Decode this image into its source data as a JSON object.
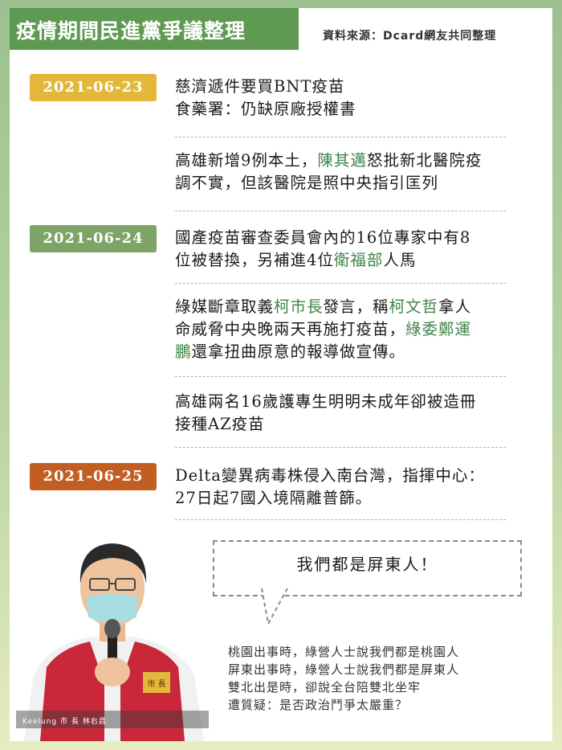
{
  "header": {
    "title": "疫情期間民進黨爭議整理",
    "source": "資料來源：Dcard網友共同整理"
  },
  "dates": {
    "d1": {
      "label": "2021-06-23",
      "color": "#e3b73a"
    },
    "d2": {
      "label": "2021-06-24",
      "color": "#7ea367"
    },
    "d3": {
      "label": "2021-06-25",
      "color": "#c25e22"
    }
  },
  "items": {
    "i1": {
      "line1": "慈濟遞件要買BNT疫苗",
      "line2": "食藥署：仍缺原廠授權書"
    },
    "i2": {
      "l1a": "高雄新增9例本土，",
      "l1b": "陳其邁",
      "l1c": "怒批新北醫院疫",
      "line2": "調不實，但該醫院是照中央指引匡列"
    },
    "i3": {
      "line1": "國產疫苗審查委員會內的16位專家中有8",
      "l2a": "位被替換，另補進4位",
      "l2b": "衛福部",
      "l2c": "人馬"
    },
    "i4": {
      "l1a": "綠媒斷章取義",
      "l1b": "柯市長",
      "l1c": "發言，稱",
      "l1d": "柯文哲",
      "l1e": "拿人",
      "l2a": "命威脅中央晚兩天再施打疫苗，",
      "l2b": "綠委鄭運",
      "l3a": "鵬",
      "l3b": "還拿扭曲原意的報導做宣傳。"
    },
    "i5": {
      "line1": "高雄兩名16歲護專生明明未成年卻被造冊",
      "line2": "接種AZ疫苗"
    },
    "i6": {
      "line1": "Delta變異病毒株侵入南台灣，指揮中心：",
      "line2": "27日起7國入境隔離普篩。"
    }
  },
  "bubble": {
    "text": "我們都是屏東人！"
  },
  "quote": {
    "line1": "桃園出事時，綠營人士說我們都是桃園人",
    "line2": "屏東出事時，綠營人士說我們都是屏東人",
    "line3": "雙北出是時，卻說全台陪雙北坐牢",
    "line4": "遭質疑：是否政治鬥爭太嚴重？"
  },
  "photo": {
    "caption": "Keelung 市 長 林右昌",
    "vest_badge": "市 長"
  },
  "colors": {
    "highlight": "#3f8548",
    "title_bar": "#5f9a52"
  }
}
